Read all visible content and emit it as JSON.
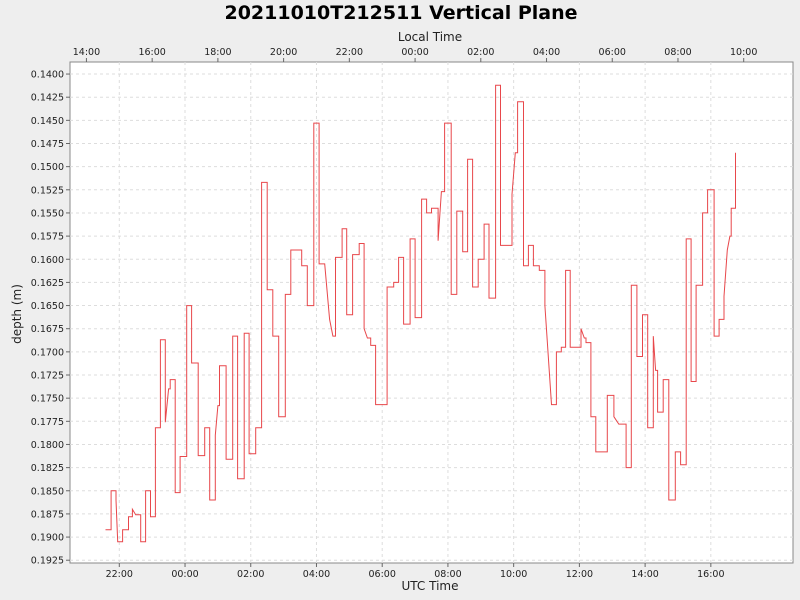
{
  "chart_data": {
    "type": "line",
    "title": "20211010T212511 Vertical Plane",
    "top_axis_label": "Local Time",
    "xlabel": "UTC Time",
    "ylabel": "depth (m)",
    "x_unit": "hours since 00:00 UTC",
    "xlim": [
      -3.5,
      18.5
    ],
    "ylim": [
      0.1928,
      0.1387
    ],
    "y_inverted": true,
    "grid": true,
    "series_color": "#e8474b",
    "bottom_ticks": [
      {
        "x": -2,
        "label": "22:00"
      },
      {
        "x": 0,
        "label": "00:00"
      },
      {
        "x": 2,
        "label": "02:00"
      },
      {
        "x": 4,
        "label": "04:00"
      },
      {
        "x": 6,
        "label": "06:00"
      },
      {
        "x": 8,
        "label": "08:00"
      },
      {
        "x": 10,
        "label": "10:00"
      },
      {
        "x": 12,
        "label": "12:00"
      },
      {
        "x": 14,
        "label": "14:00"
      },
      {
        "x": 16,
        "label": "16:00"
      }
    ],
    "top_ticks": [
      {
        "x": -3,
        "label": "14:00"
      },
      {
        "x": -1,
        "label": "16:00"
      },
      {
        "x": 1,
        "label": "18:00"
      },
      {
        "x": 3,
        "label": "20:00"
      },
      {
        "x": 5,
        "label": "22:00"
      },
      {
        "x": 7,
        "label": "00:00"
      },
      {
        "x": 9,
        "label": "02:00"
      },
      {
        "x": 11,
        "label": "04:00"
      },
      {
        "x": 13,
        "label": "06:00"
      },
      {
        "x": 15,
        "label": "08:00"
      },
      {
        "x": 17,
        "label": "10:00"
      }
    ],
    "y_ticks": [
      "0.1400",
      "0.1425",
      "0.1450",
      "0.1475",
      "0.1500",
      "0.1525",
      "0.1550",
      "0.1575",
      "0.1600",
      "0.1625",
      "0.1650",
      "0.1675",
      "0.1700",
      "0.1725",
      "0.1750",
      "0.1775",
      "0.1800",
      "0.1825",
      "0.1850",
      "0.1875",
      "0.1900",
      "0.1925"
    ],
    "points": [
      [
        -2.42,
        0.1892
      ],
      [
        -2.25,
        0.1892
      ],
      [
        -2.25,
        0.185
      ],
      [
        -2.1,
        0.185
      ],
      [
        -2.1,
        0.186
      ],
      [
        -2.05,
        0.1905
      ],
      [
        -1.9,
        0.1905
      ],
      [
        -1.9,
        0.1892
      ],
      [
        -1.72,
        0.1892
      ],
      [
        -1.72,
        0.1878
      ],
      [
        -1.6,
        0.1878
      ],
      [
        -1.6,
        0.187
      ],
      [
        -1.5,
        0.1876
      ],
      [
        -1.35,
        0.1876
      ],
      [
        -1.35,
        0.1905
      ],
      [
        -1.2,
        0.1905
      ],
      [
        -1.2,
        0.185
      ],
      [
        -1.05,
        0.185
      ],
      [
        -1.05,
        0.1878
      ],
      [
        -0.9,
        0.1878
      ],
      [
        -0.9,
        0.1782
      ],
      [
        -0.75,
        0.1782
      ],
      [
        -0.75,
        0.1687
      ],
      [
        -0.6,
        0.1687
      ],
      [
        -0.6,
        0.1776
      ],
      [
        -0.5,
        0.174
      ],
      [
        -0.45,
        0.174
      ],
      [
        -0.45,
        0.173
      ],
      [
        -0.3,
        0.173
      ],
      [
        -0.3,
        0.1852
      ],
      [
        -0.15,
        0.1852
      ],
      [
        -0.15,
        0.1813
      ],
      [
        0.05,
        0.1813
      ],
      [
        0.05,
        0.165
      ],
      [
        0.2,
        0.165
      ],
      [
        0.2,
        0.1712
      ],
      [
        0.4,
        0.1712
      ],
      [
        0.4,
        0.1812
      ],
      [
        0.6,
        0.1812
      ],
      [
        0.6,
        0.1782
      ],
      [
        0.75,
        0.1782
      ],
      [
        0.75,
        0.186
      ],
      [
        0.92,
        0.186
      ],
      [
        0.92,
        0.179
      ],
      [
        1,
        0.1758
      ],
      [
        1.05,
        0.1758
      ],
      [
        1.05,
        0.1715
      ],
      [
        1.25,
        0.1715
      ],
      [
        1.25,
        0.1816
      ],
      [
        1.45,
        0.1816
      ],
      [
        1.45,
        0.1683
      ],
      [
        1.6,
        0.1683
      ],
      [
        1.6,
        0.1837
      ],
      [
        1.8,
        0.1837
      ],
      [
        1.8,
        0.168
      ],
      [
        1.95,
        0.168
      ],
      [
        1.95,
        0.181
      ],
      [
        2.15,
        0.181
      ],
      [
        2.15,
        0.1782
      ],
      [
        2.33,
        0.1782
      ],
      [
        2.33,
        0.1517
      ],
      [
        2.5,
        0.1517
      ],
      [
        2.5,
        0.1633
      ],
      [
        2.67,
        0.1633
      ],
      [
        2.67,
        0.1683
      ],
      [
        2.85,
        0.1683
      ],
      [
        2.85,
        0.177
      ],
      [
        3.05,
        0.177
      ],
      [
        3.05,
        0.1638
      ],
      [
        3.22,
        0.1638
      ],
      [
        3.22,
        0.159
      ],
      [
        3.55,
        0.159
      ],
      [
        3.55,
        0.1607
      ],
      [
        3.72,
        0.1607
      ],
      [
        3.72,
        0.165
      ],
      [
        3.92,
        0.165
      ],
      [
        3.92,
        0.1453
      ],
      [
        4.08,
        0.1453
      ],
      [
        4.08,
        0.1605
      ],
      [
        4.25,
        0.1605
      ],
      [
        4.4,
        0.1665
      ],
      [
        4.5,
        0.1683
      ],
      [
        4.58,
        0.1683
      ],
      [
        4.58,
        0.1598
      ],
      [
        4.78,
        0.1598
      ],
      [
        4.78,
        0.1567
      ],
      [
        4.92,
        0.1567
      ],
      [
        4.92,
        0.166
      ],
      [
        5.1,
        0.166
      ],
      [
        5.1,
        0.1595
      ],
      [
        5.3,
        0.1595
      ],
      [
        5.3,
        0.1583
      ],
      [
        5.45,
        0.1583
      ],
      [
        5.45,
        0.1675
      ],
      [
        5.55,
        0.1685
      ],
      [
        5.65,
        0.1685
      ],
      [
        5.65,
        0.1693
      ],
      [
        5.8,
        0.1693
      ],
      [
        5.8,
        0.1757
      ],
      [
        6.15,
        0.1757
      ],
      [
        6.15,
        0.163
      ],
      [
        6.35,
        0.163
      ],
      [
        6.35,
        0.1625
      ],
      [
        6.5,
        0.1625
      ],
      [
        6.5,
        0.1598
      ],
      [
        6.65,
        0.1598
      ],
      [
        6.65,
        0.167
      ],
      [
        6.85,
        0.167
      ],
      [
        6.85,
        0.1578
      ],
      [
        7,
        0.1578
      ],
      [
        7,
        0.1663
      ],
      [
        7.2,
        0.1663
      ],
      [
        7.2,
        0.1535
      ],
      [
        7.35,
        0.1535
      ],
      [
        7.35,
        0.155
      ],
      [
        7.5,
        0.155
      ],
      [
        7.5,
        0.1545
      ],
      [
        7.7,
        0.1545
      ],
      [
        7.7,
        0.158
      ],
      [
        7.8,
        0.1527
      ],
      [
        7.9,
        0.1527
      ],
      [
        7.9,
        0.1453
      ],
      [
        8.1,
        0.1453
      ],
      [
        8.1,
        0.1638
      ],
      [
        8.27,
        0.1638
      ],
      [
        8.27,
        0.1548
      ],
      [
        8.45,
        0.1548
      ],
      [
        8.45,
        0.1592
      ],
      [
        8.6,
        0.1592
      ],
      [
        8.6,
        0.1492
      ],
      [
        8.75,
        0.1492
      ],
      [
        8.75,
        0.163
      ],
      [
        8.92,
        0.163
      ],
      [
        8.92,
        0.16
      ],
      [
        9.1,
        0.16
      ],
      [
        9.1,
        0.1562
      ],
      [
        9.25,
        0.1562
      ],
      [
        9.25,
        0.1642
      ],
      [
        9.45,
        0.1642
      ],
      [
        9.45,
        0.1412
      ],
      [
        9.6,
        0.1412
      ],
      [
        9.6,
        0.1585
      ],
      [
        9.95,
        0.1585
      ],
      [
        9.95,
        0.153
      ],
      [
        10.05,
        0.1485
      ],
      [
        10.12,
        0.1485
      ],
      [
        10.12,
        0.143
      ],
      [
        10.3,
        0.143
      ],
      [
        10.3,
        0.1607
      ],
      [
        10.45,
        0.1607
      ],
      [
        10.45,
        0.1585
      ],
      [
        10.6,
        0.1585
      ],
      [
        10.6,
        0.1607
      ],
      [
        10.78,
        0.1607
      ],
      [
        10.78,
        0.1612
      ],
      [
        10.95,
        0.1612
      ],
      [
        10.95,
        0.165
      ],
      [
        11.15,
        0.1757
      ],
      [
        11.3,
        0.1757
      ],
      [
        11.3,
        0.17
      ],
      [
        11.45,
        0.17
      ],
      [
        11.45,
        0.1695
      ],
      [
        11.58,
        0.1695
      ],
      [
        11.58,
        0.1612
      ],
      [
        11.72,
        0.1612
      ],
      [
        11.72,
        0.1695
      ],
      [
        12.05,
        0.1695
      ],
      [
        12.05,
        0.1675
      ],
      [
        12.15,
        0.1685
      ],
      [
        12.2,
        0.1685
      ],
      [
        12.2,
        0.169
      ],
      [
        12.35,
        0.169
      ],
      [
        12.35,
        0.177
      ],
      [
        12.5,
        0.177
      ],
      [
        12.5,
        0.1808
      ],
      [
        12.85,
        0.1808
      ],
      [
        12.85,
        0.1747
      ],
      [
        13.05,
        0.1747
      ],
      [
        13.05,
        0.177
      ],
      [
        13.2,
        0.1778
      ],
      [
        13.42,
        0.1778
      ],
      [
        13.42,
        0.1825
      ],
      [
        13.58,
        0.1825
      ],
      [
        13.58,
        0.1628
      ],
      [
        13.75,
        0.1628
      ],
      [
        13.75,
        0.1705
      ],
      [
        13.92,
        0.1705
      ],
      [
        13.92,
        0.166
      ],
      [
        14.08,
        0.166
      ],
      [
        14.08,
        0.1782
      ],
      [
        14.25,
        0.1782
      ],
      [
        14.25,
        0.1683
      ],
      [
        14.32,
        0.172
      ],
      [
        14.38,
        0.172
      ],
      [
        14.38,
        0.1765
      ],
      [
        14.55,
        0.1765
      ],
      [
        14.55,
        0.173
      ],
      [
        14.72,
        0.173
      ],
      [
        14.72,
        0.186
      ],
      [
        14.92,
        0.186
      ],
      [
        14.92,
        0.1808
      ],
      [
        15.08,
        0.1808
      ],
      [
        15.08,
        0.1822
      ],
      [
        15.25,
        0.1822
      ],
      [
        15.25,
        0.1578
      ],
      [
        15.4,
        0.1578
      ],
      [
        15.4,
        0.1732
      ],
      [
        15.55,
        0.1732
      ],
      [
        15.55,
        0.1628
      ],
      [
        15.75,
        0.1628
      ],
      [
        15.75,
        0.155
      ],
      [
        15.9,
        0.155
      ],
      [
        15.9,
        0.1525
      ],
      [
        16.1,
        0.1525
      ],
      [
        16.1,
        0.1683
      ],
      [
        16.25,
        0.1683
      ],
      [
        16.25,
        0.1665
      ],
      [
        16.4,
        0.1665
      ],
      [
        16.4,
        0.164
      ],
      [
        16.5,
        0.159
      ],
      [
        16.58,
        0.1575
      ],
      [
        16.62,
        0.1575
      ],
      [
        16.62,
        0.1545
      ],
      [
        16.75,
        0.1545
      ],
      [
        16.75,
        0.1485
      ]
    ]
  }
}
